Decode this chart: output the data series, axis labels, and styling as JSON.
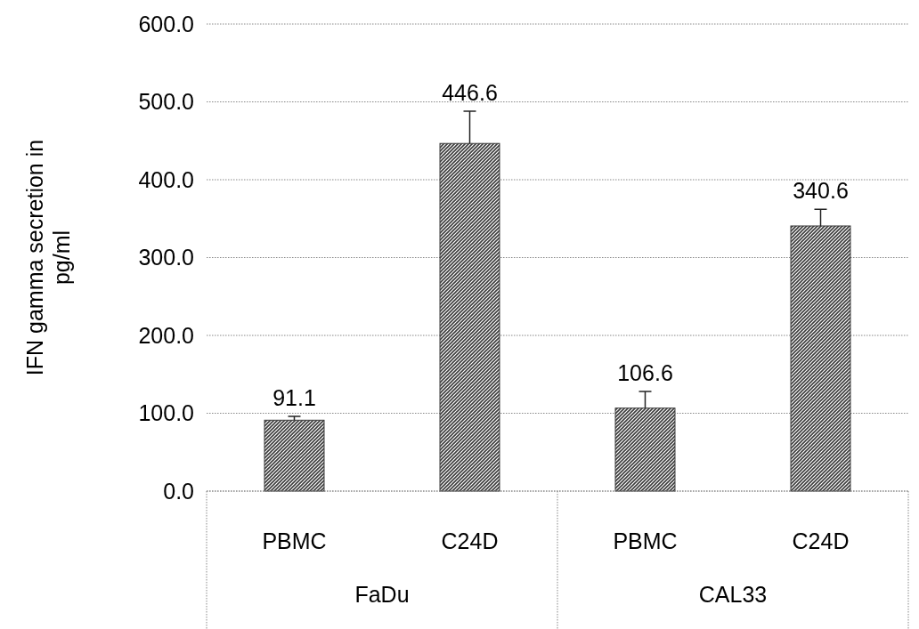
{
  "chart_data": {
    "type": "bar",
    "ylabel": "IFN gamma secretion in pg/ml",
    "categories": [
      "PBMC",
      "C24D",
      "PBMC",
      "C24D"
    ],
    "values": [
      91.1,
      446.6,
      106.6,
      340.6
    ],
    "color": "#3a3a3a",
    "errors": [
      [
        91.1,
        96
      ],
      [
        446.6,
        488
      ],
      [
        106.6,
        128
      ],
      [
        340.6,
        362
      ]
    ],
    "data_labels": true,
    "ylim": [
      0,
      600
    ],
    "yticks": [
      {
        "value": 0,
        "label": "0.0"
      },
      {
        "value": 100,
        "label": "100.0"
      },
      {
        "value": 200,
        "label": "200.0"
      },
      {
        "value": 300,
        "label": "300.0"
      },
      {
        "value": 400,
        "label": "400.0"
      },
      {
        "value": 500,
        "label": "500.0"
      },
      {
        "value": 600,
        "label": "600.0"
      }
    ],
    "grid": "y",
    "annotations": [
      "FaDu",
      "CAL33"
    ]
  }
}
